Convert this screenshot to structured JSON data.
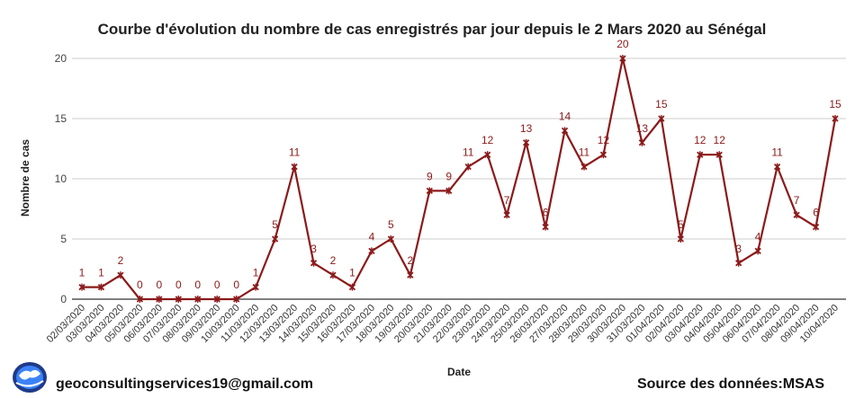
{
  "footer": {
    "email": "geoconsultingservices19@gmail.com",
    "source": "Source des données:MSAS"
  },
  "chart_data": {
    "type": "line",
    "title": "Courbe d'évolution du nombre de cas enregistrés par jour depuis le 2 Mars 2020 au Sénégal",
    "xlabel": "Date",
    "ylabel": "Nombre de cas",
    "ylim": [
      0,
      20
    ],
    "yticks": [
      0,
      5,
      10,
      15,
      20
    ],
    "grid": true,
    "line_color": "#8b1a1a",
    "categories": [
      "02/03/2020",
      "03/03/2020",
      "04/03/2020",
      "05/03/2020",
      "06/03/2020",
      "07/03/2020",
      "08/03/2020",
      "09/03/2020",
      "10/03/2020",
      "11/03/2020",
      "12/03/2020",
      "13/03/2020",
      "14/03/2020",
      "15/03/2020",
      "16/03/2020",
      "17/03/2020",
      "18/03/2020",
      "19/03/2020",
      "20/03/2020",
      "21/03/2020",
      "22/03/2020",
      "23/03/2020",
      "24/03/2020",
      "25/03/2020",
      "26/03/2020",
      "27/03/2020",
      "28/03/2020",
      "29/03/2020",
      "30/03/2020",
      "31/03/2020",
      "01/04/2020",
      "02/04/2020",
      "03/04/2020",
      "04/04/2020",
      "05/04/2020",
      "06/04/2020",
      "07/04/2020",
      "08/04/2020",
      "09/04/2020",
      "10/04/2020"
    ],
    "values": [
      1,
      1,
      2,
      0,
      0,
      0,
      0,
      0,
      0,
      1,
      5,
      11,
      3,
      2,
      1,
      4,
      5,
      2,
      9,
      9,
      11,
      12,
      7,
      13,
      6,
      14,
      11,
      12,
      20,
      13,
      15,
      5,
      12,
      12,
      3,
      4,
      11,
      7,
      6,
      15
    ]
  }
}
